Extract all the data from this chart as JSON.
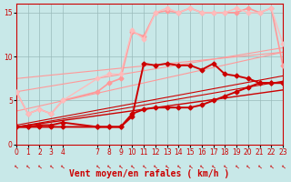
{
  "background_color": "#c8e8e8",
  "grid_color": "#99bbbb",
  "xlim": [
    0,
    23
  ],
  "ylim": [
    0,
    16
  ],
  "xlabel": "Vent moyen/en rafales ( km/h )",
  "xlabel_color": "#cc0000",
  "xlabel_fontsize": 7,
  "yticks": [
    0,
    5,
    10,
    15
  ],
  "xticks": [
    0,
    1,
    2,
    3,
    4,
    7,
    8,
    9,
    10,
    11,
    12,
    13,
    14,
    15,
    16,
    17,
    18,
    19,
    20,
    21,
    22,
    23
  ],
  "tick_color": "#cc0000",
  "tick_fontsize": 5.5,
  "arrow_color": "#cc0000",
  "lines": [
    {
      "x": [
        0,
        23
      ],
      "y": [
        2.0,
        6.2
      ],
      "color": "#cc0000",
      "linewidth": 1.0,
      "marker": null,
      "markersize": 0,
      "linestyle": "-",
      "zorder": 3
    },
    {
      "x": [
        0,
        23
      ],
      "y": [
        2.0,
        7.2
      ],
      "color": "#cc0000",
      "linewidth": 0.8,
      "marker": null,
      "markersize": 0,
      "linestyle": "-",
      "zorder": 3
    },
    {
      "x": [
        0,
        23
      ],
      "y": [
        2.2,
        7.8
      ],
      "color": "#cc0000",
      "linewidth": 0.8,
      "marker": null,
      "markersize": 0,
      "linestyle": "-",
      "zorder": 3
    },
    {
      "x": [
        0,
        1,
        2,
        3,
        4,
        7,
        8,
        9,
        10,
        11,
        12,
        13,
        14,
        15,
        16,
        17,
        18,
        19,
        20,
        21,
        22,
        23
      ],
      "y": [
        2,
        2,
        2,
        2,
        2,
        2,
        2,
        2,
        3.5,
        4,
        4.2,
        4.2,
        4.2,
        4.2,
        4.5,
        5,
        5.5,
        6,
        6.5,
        7,
        7,
        7
      ],
      "color": "#cc0000",
      "linewidth": 1.4,
      "marker": "D",
      "markersize": 2.5,
      "linestyle": "-",
      "zorder": 5
    },
    {
      "x": [
        0,
        1,
        2,
        3,
        4,
        7,
        8,
        9,
        10,
        11,
        12,
        13,
        14,
        15,
        16,
        17,
        18,
        19,
        20,
        21,
        22,
        23
      ],
      "y": [
        2,
        2,
        2.2,
        2.2,
        2.5,
        2,
        2,
        2,
        3.2,
        9.2,
        9,
        9.2,
        9,
        9,
        8.5,
        9.2,
        8,
        7.8,
        7.5,
        7,
        7,
        7
      ],
      "color": "#cc0000",
      "linewidth": 1.4,
      "marker": "D",
      "markersize": 2.5,
      "linestyle": "-",
      "zorder": 5
    },
    {
      "x": [
        0,
        23
      ],
      "y": [
        7.5,
        10.5
      ],
      "color": "#ff9999",
      "linewidth": 0.8,
      "marker": null,
      "markersize": 0,
      "linestyle": "-",
      "zorder": 2
    },
    {
      "x": [
        0,
        23
      ],
      "y": [
        6.0,
        11.0
      ],
      "color": "#ff9999",
      "linewidth": 0.8,
      "marker": null,
      "markersize": 0,
      "linestyle": "-",
      "zorder": 2
    },
    {
      "x": [
        0,
        23
      ],
      "y": [
        3.8,
        10.5
      ],
      "color": "#ff9999",
      "linewidth": 0.8,
      "marker": null,
      "markersize": 0,
      "linestyle": "-",
      "zorder": 2
    },
    {
      "x": [
        0,
        1,
        2,
        3,
        4,
        7,
        8,
        9,
        10,
        11,
        12,
        13,
        14,
        15,
        16,
        17,
        18,
        19,
        20,
        21,
        22,
        23
      ],
      "y": [
        6,
        3.5,
        4,
        3.5,
        5,
        6,
        7,
        7.5,
        12.8,
        12.3,
        15,
        15.2,
        15,
        15.5,
        15,
        15,
        15,
        15,
        15.5,
        15,
        15.5,
        9
      ],
      "color": "#ff9999",
      "linewidth": 1.2,
      "marker": "D",
      "markersize": 2.5,
      "linestyle": "-",
      "zorder": 4
    },
    {
      "x": [
        0,
        1,
        2,
        3,
        4,
        7,
        8,
        9,
        10,
        11,
        12,
        13,
        14,
        15,
        16,
        17,
        18,
        19,
        20,
        21,
        22,
        23
      ],
      "y": [
        6,
        3.5,
        4,
        3.5,
        5,
        7.5,
        8,
        8,
        13,
        12,
        15,
        15.5,
        15,
        15.5,
        15,
        15,
        15,
        15.5,
        15,
        15,
        15.5,
        11.5
      ],
      "color": "#ffbbbb",
      "linewidth": 1.0,
      "marker": "D",
      "markersize": 2.5,
      "linestyle": "-",
      "zorder": 4
    }
  ]
}
